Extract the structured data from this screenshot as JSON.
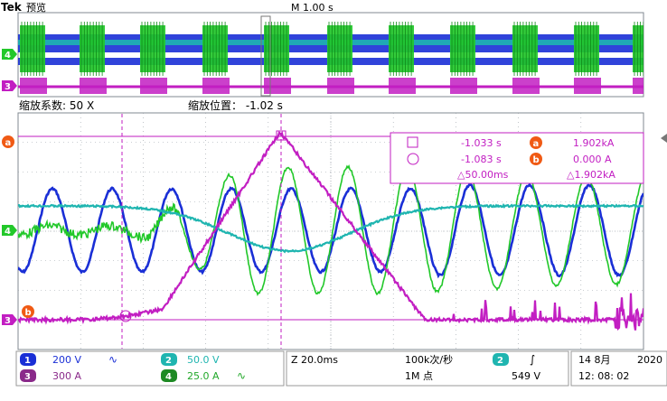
{
  "header": {
    "brand": "Tek",
    "mode": "预览",
    "timebase": "M 1.00 s"
  },
  "zoom": {
    "factor_label": "缩放系数: 50 X",
    "position_label": "缩放位置： -1.02 s"
  },
  "channel_markers": {
    "overview_ch4": "4",
    "overview_ch3": "3",
    "ref_a": "a",
    "ref_b": "b",
    "main_ch4": "4",
    "main_ch3": "3"
  },
  "cursor_readout": {
    "t1": "-1.033 s",
    "t2": "-1.083 s",
    "dt": "△50.00ms",
    "a_value": "1.902kA",
    "b_value": "0.000 A",
    "delta_value": "△1.902kA",
    "a_badge": "a",
    "b_badge": "b"
  },
  "status": {
    "ch1": {
      "num": "1",
      "scale": "200 V",
      "coupling": "∿"
    },
    "ch2": {
      "num": "2",
      "scale": "50.0 V"
    },
    "ch3": {
      "num": "3",
      "scale": "300 A"
    },
    "ch4": {
      "num": "4",
      "scale": "25.0 A",
      "coupling": "∿"
    },
    "horizontal": "Z 20.0ms",
    "sample_rate": "100k次/秒",
    "record_length": "1M 点",
    "trigger_source": "2",
    "trigger_slope": "∫",
    "trigger_level": "549 V",
    "date": "14 8月",
    "year": "2020",
    "time": "12: 08: 02"
  },
  "colors": {
    "ch1": "#1a2fd6",
    "ch2": "#1fb5b0",
    "ch3": "#c21ec2",
    "ch4": "#22c82a",
    "marker_orange": "#f05a14",
    "grid": "#9aa0a8"
  }
}
